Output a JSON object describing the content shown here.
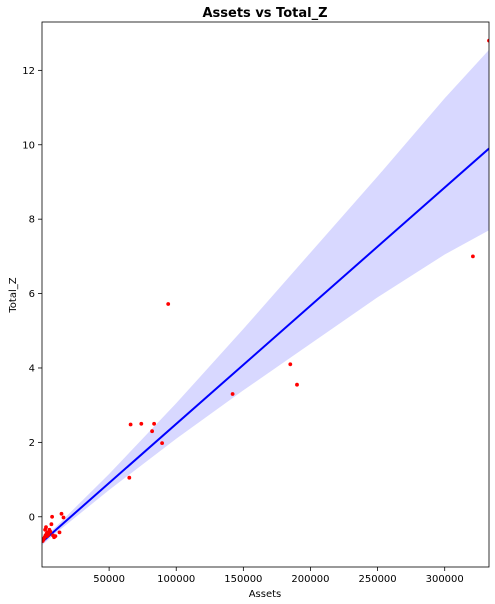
{
  "chart_data": {
    "type": "scatter",
    "title": "Assets vs Total_Z",
    "xlabel": "Assets",
    "ylabel": "Total_Z",
    "xlim": [
      0,
      333000
    ],
    "ylim": [
      -1.35,
      13.3
    ],
    "xticks": [
      50000,
      100000,
      150000,
      200000,
      250000,
      300000
    ],
    "xtick_labels": [
      "50000",
      "100000",
      "150000",
      "200000",
      "250000",
      "300000"
    ],
    "yticks": [
      0,
      2,
      4,
      6,
      8,
      10,
      12
    ],
    "ytick_labels": [
      "0",
      "2",
      "4",
      "6",
      "8",
      "10",
      "12"
    ],
    "grid": false,
    "colors": {
      "points": "#ff0000",
      "fit_line": "#0000ff",
      "confidence_band": "#d8d8ff"
    },
    "points": [
      {
        "x": 500,
        "y": -0.65
      },
      {
        "x": 800,
        "y": -0.62
      },
      {
        "x": 1200,
        "y": -0.6
      },
      {
        "x": 1600,
        "y": -0.58
      },
      {
        "x": 2000,
        "y": -0.55
      },
      {
        "x": 2300,
        "y": -0.35
      },
      {
        "x": 2600,
        "y": -0.5
      },
      {
        "x": 3000,
        "y": -0.28
      },
      {
        "x": 3400,
        "y": -0.45
      },
      {
        "x": 3800,
        "y": -0.52
      },
      {
        "x": 4200,
        "y": -0.42
      },
      {
        "x": 4800,
        "y": -0.48
      },
      {
        "x": 5500,
        "y": -0.35
      },
      {
        "x": 6200,
        "y": -0.4
      },
      {
        "x": 7000,
        "y": -0.2
      },
      {
        "x": 7500,
        "y": 0.0
      },
      {
        "x": 8200,
        "y": -0.5
      },
      {
        "x": 9000,
        "y": -0.55
      },
      {
        "x": 10000,
        "y": -0.52
      },
      {
        "x": 13000,
        "y": -0.42
      },
      {
        "x": 14500,
        "y": 0.08
      },
      {
        "x": 16000,
        "y": -0.02
      },
      {
        "x": 65000,
        "y": 1.05
      },
      {
        "x": 66000,
        "y": 2.48
      },
      {
        "x": 74000,
        "y": 2.5
      },
      {
        "x": 82000,
        "y": 2.3
      },
      {
        "x": 83500,
        "y": 2.5
      },
      {
        "x": 89500,
        "y": 1.98
      },
      {
        "x": 94000,
        "y": 5.72
      },
      {
        "x": 142000,
        "y": 3.3
      },
      {
        "x": 185000,
        "y": 4.1
      },
      {
        "x": 190000,
        "y": 3.55
      },
      {
        "x": 321000,
        "y": 7.0
      },
      {
        "x": 333000,
        "y": 12.8
      }
    ],
    "regression": {
      "x": [
        0,
        333000
      ],
      "y": [
        -0.68,
        9.9
      ]
    },
    "confidence_band": {
      "x": [
        0,
        10000,
        50000,
        100000,
        150000,
        200000,
        250000,
        300000,
        333000
      ],
      "upper": [
        -0.6,
        -0.28,
        1.15,
        3.05,
        5.05,
        7.1,
        9.15,
        11.25,
        12.55
      ],
      "lower": [
        -0.76,
        -0.45,
        0.72,
        2.1,
        3.4,
        4.65,
        5.9,
        7.05,
        7.7
      ]
    }
  }
}
